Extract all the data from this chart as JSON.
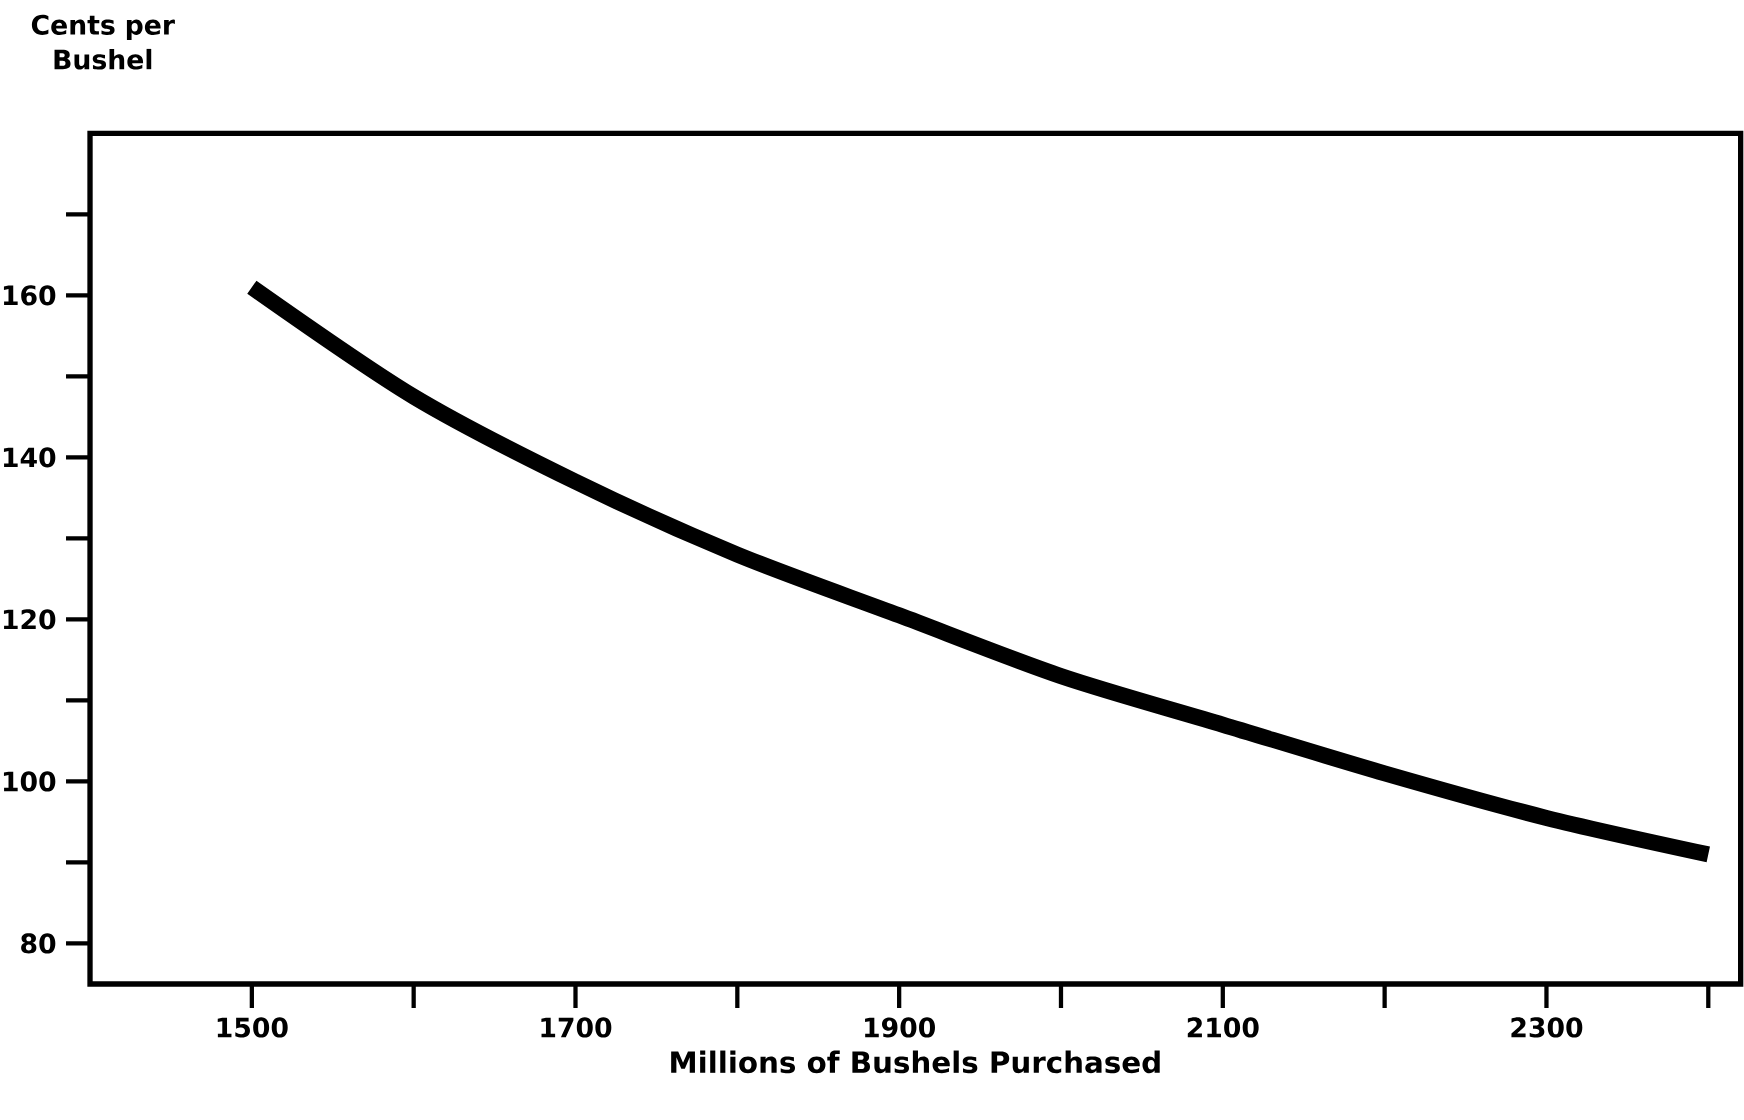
{
  "chart_data": {
    "type": "line",
    "xlabel": "Millions of Bushels Purchased",
    "ylabel": "Cents per Bushel",
    "x": [
      1500,
      1600,
      1700,
      1800,
      1900,
      2000,
      2100,
      2200,
      2300,
      2400
    ],
    "series": [
      {
        "color": "#000000",
        "values": [
          161,
          147.5,
          137,
          128,
          120.5,
          113,
          107,
          101,
          95.5,
          91
        ]
      }
    ],
    "xlim": [
      1400,
      2420
    ],
    "ylim": [
      75,
      180
    ],
    "xticks": [
      1500,
      {
        "value": 1600,
        "label": null
      },
      1700,
      {
        "value": 1800,
        "label": null
      },
      1900,
      {
        "value": 2000,
        "label": null
      },
      2100,
      {
        "value": 2200,
        "label": null
      },
      2300,
      {
        "value": 2400,
        "label": null
      }
    ],
    "yticks": [
      80,
      {
        "value": 90,
        "label": null
      },
      100,
      {
        "value": 110,
        "label": null
      },
      120,
      {
        "value": 130,
        "label": null
      },
      140,
      {
        "value": 150,
        "label": null
      },
      160,
      {
        "value": 170,
        "label": null
      }
    ],
    "grid": false,
    "marker": "none",
    "line_style": "solid"
  }
}
